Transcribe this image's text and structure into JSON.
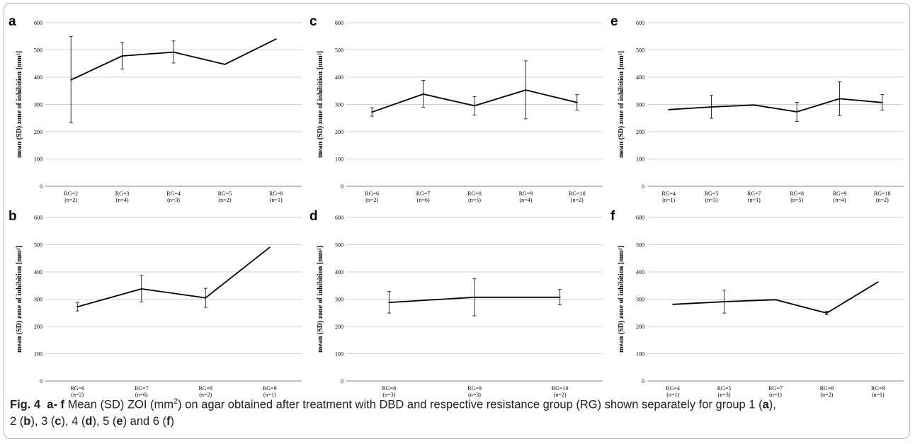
{
  "chart_data": [
    {
      "type": "line",
      "panel_label": "a",
      "ylabel": "mean (SD) zone of inhibition [mm²]",
      "ylim": [
        0,
        600
      ],
      "yticks": [
        0,
        100,
        200,
        300,
        400,
        500,
        600
      ],
      "categories": [
        [
          "RG=2",
          "(n=2)"
        ],
        [
          "RG=3",
          "(n=4)"
        ],
        [
          "RG=4",
          "(n=3)"
        ],
        [
          "RG=5",
          "(n=2)"
        ],
        [
          "RG=6",
          "(n=1)"
        ]
      ],
      "values": [
        390,
        478,
        492,
        447,
        540
      ],
      "error_bars": [
        [
          232,
          550
        ],
        [
          430,
          528
        ],
        [
          452,
          533
        ],
        null,
        null
      ]
    },
    {
      "type": "line",
      "panel_label": "b",
      "ylabel": "mean (SD) zone of inhibition [mm²]",
      "ylim": [
        0,
        600
      ],
      "yticks": [
        0,
        100,
        200,
        300,
        400,
        500,
        600
      ],
      "categories": [
        [
          "RG=6",
          "(n=2)"
        ],
        [
          "RG=7",
          "(n=6)"
        ],
        [
          "RG=8",
          "(n=2)"
        ],
        [
          "RG=9",
          "(n=1)"
        ]
      ],
      "values": [
        272,
        338,
        305,
        490
      ],
      "error_bars": [
        [
          257,
          288
        ],
        [
          290,
          387
        ],
        [
          270,
          340
        ],
        null
      ]
    },
    {
      "type": "line",
      "panel_label": "c",
      "ylabel": "mean (SD) zone of inhibition [mm²]",
      "ylim": [
        0,
        600
      ],
      "yticks": [
        0,
        100,
        200,
        300,
        400,
        500,
        600
      ],
      "categories": [
        [
          "RG=6",
          "(n=2)"
        ],
        [
          "RG=7",
          "(n=6)"
        ],
        [
          "RG=8",
          "(n=5)"
        ],
        [
          "RG=9",
          "(n=4)"
        ],
        [
          "RG=10",
          "(n=2)"
        ]
      ],
      "values": [
        272,
        338,
        295,
        353,
        307
      ],
      "error_bars": [
        [
          257,
          288
        ],
        [
          290,
          388
        ],
        [
          261,
          329
        ],
        [
          247,
          460
        ],
        [
          279,
          336
        ]
      ]
    },
    {
      "type": "line",
      "panel_label": "d",
      "ylabel": "mean (SD) zone of inhibition [mm²]",
      "ylim": [
        0,
        600
      ],
      "yticks": [
        0,
        100,
        200,
        300,
        400,
        500,
        600
      ],
      "categories": [
        [
          "RG=8",
          "(n=3)"
        ],
        [
          "RG=9",
          "(n=3)"
        ],
        [
          "RG=10",
          "(n=2)"
        ]
      ],
      "values": [
        288,
        307,
        307
      ],
      "error_bars": [
        [
          249,
          328
        ],
        [
          239,
          376
        ],
        [
          279,
          336
        ]
      ]
    },
    {
      "type": "line",
      "panel_label": "e",
      "ylabel": "mean (SD) zone of inhibition [mm²]",
      "ylim": [
        0,
        600
      ],
      "yticks": [
        0,
        100,
        200,
        300,
        400,
        500,
        600
      ],
      "categories": [
        [
          "RG=4",
          "(n=1)"
        ],
        [
          "RG=5",
          "(n=3)"
        ],
        [
          "RG=7",
          "(n=1)"
        ],
        [
          "RG=8",
          "(n=5)"
        ],
        [
          "RG=9",
          "(n=4)"
        ],
        [
          "RG=10",
          "(n=2)"
        ]
      ],
      "values": [
        281,
        291,
        298,
        273,
        321,
        307
      ],
      "error_bars": [
        null,
        [
          249,
          333
        ],
        null,
        [
          238,
          308
        ],
        [
          259,
          383
        ],
        [
          279,
          336
        ]
      ]
    },
    {
      "type": "line",
      "panel_label": "f",
      "ylabel": "mean (SD) zone of inhibition [mm²]",
      "ylim": [
        0,
        600
      ],
      "yticks": [
        0,
        100,
        200,
        300,
        400,
        500,
        600
      ],
      "categories": [
        [
          "RG=4",
          "(n=1)"
        ],
        [
          "RG=5",
          "(n=3)"
        ],
        [
          "RG=7",
          "(n=1)"
        ],
        [
          "RG=8",
          "(n=2)"
        ],
        [
          "RG=9",
          "(n=1)"
        ]
      ],
      "values": [
        281,
        291,
        298,
        249,
        363
      ],
      "error_bars": [
        null,
        [
          249,
          333
        ],
        null,
        [
          243,
          256
        ],
        null
      ]
    }
  ],
  "caption": {
    "fig_label": "Fig. 4",
    "panels_range": "a- f",
    "t1": "Mean (SD) ZOI (mm",
    "sup": "2",
    "t2": ") on agar obtained after treatment with DBD and respective resistance group (RG) shown separately for group 1 (",
    "a": "a",
    "t3": "),",
    "t4": "2 (",
    "b": "b",
    "t5": "), 3 (",
    "c": "c",
    "t6": "), 4 (",
    "d": "d",
    "t7": "), 5 (",
    "e": "e",
    "t8": ") and 6 (",
    "f": "f",
    "t9": ")"
  },
  "colors": {
    "line": "#000000",
    "grid": "#d0d0d0",
    "frame": "#b5b5b5"
  }
}
